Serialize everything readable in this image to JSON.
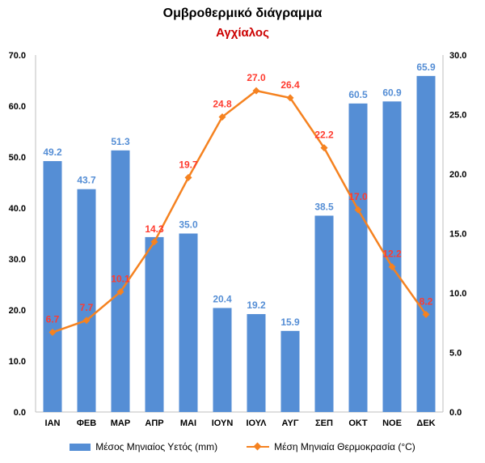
{
  "chart_data": {
    "type": "bar",
    "title": "Ομβροθερμικό διάγραμμα",
    "subtitle": "Αγχίαλος",
    "categories": [
      "ΙΑΝ",
      "ΦΕΒ",
      "ΜΑΡ",
      "ΑΠΡ",
      "ΜΑΙ",
      "ΙΟΥΝ",
      "ΙΟΥΛ",
      "ΑΥΓ",
      "ΣΕΠ",
      "ΟΚΤ",
      "ΝΟΕ",
      "ΔΕΚ"
    ],
    "series": [
      {
        "name": "Μέσος Μηνιαίος Υετός (mm)",
        "type": "bar",
        "axis": "left",
        "color": "#558ed5",
        "label_color": "#558ed5",
        "values": [
          49.2,
          43.7,
          51.3,
          34.3,
          35.0,
          20.4,
          19.2,
          15.9,
          38.5,
          60.5,
          60.9,
          65.9
        ],
        "labels": [
          "49.2",
          "43.7",
          "51.3",
          "",
          "35.0",
          "20.4",
          "19.2",
          "15.9",
          "38.5",
          "60.5",
          "60.9",
          "65.9"
        ]
      },
      {
        "name": "Μέση Μηνιαία Θερμοκρασία (°C)",
        "type": "line",
        "axis": "right",
        "color": "#f58220",
        "label_color": "#ff3b2f",
        "values": [
          6.7,
          7.7,
          10.1,
          14.3,
          19.7,
          24.8,
          27.0,
          26.4,
          22.2,
          17.0,
          12.2,
          8.2
        ],
        "labels": [
          "6.7",
          "7.7",
          "10.1",
          "14.3",
          "19.7",
          "24.8",
          "27.0",
          "26.4",
          "22.2",
          "17.0",
          "12.2",
          "8.2"
        ]
      }
    ],
    "y_left": {
      "min": 0,
      "max": 70,
      "ticks": [
        "0.0",
        "10.0",
        "20.0",
        "30.0",
        "40.0",
        "50.0",
        "60.0",
        "70.0"
      ]
    },
    "y_right": {
      "min": 0,
      "max": 30,
      "ticks": [
        "0.0",
        "5.0",
        "10.0",
        "15.0",
        "20.0",
        "25.0",
        "30.0"
      ]
    },
    "grid": false,
    "legend_position": "bottom"
  }
}
